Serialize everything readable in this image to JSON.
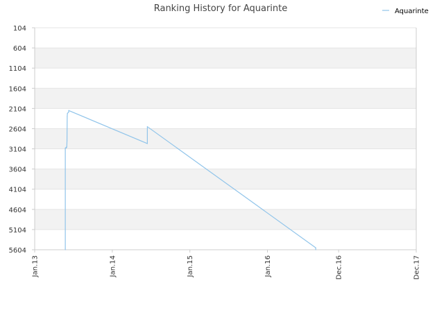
{
  "chart_data": {
    "type": "line",
    "title": "Ranking History for Aquarinte",
    "xlabel": "",
    "ylabel": "",
    "y_inverted": true,
    "ylim": [
      104,
      5604
    ],
    "y_ticks": [
      104,
      604,
      1104,
      1604,
      2104,
      2604,
      3104,
      3604,
      4104,
      4604,
      5104,
      5604
    ],
    "y_tick_labels": [
      "104",
      "604",
      "1104",
      "1604",
      "2104",
      "2604",
      "3104",
      "3604",
      "4104",
      "4604",
      "5104",
      "5604"
    ],
    "xlim": [
      "2013-01-01",
      "2017-12-01"
    ],
    "x_ticks": [
      {
        "label": "Jan.13",
        "date": "2013-01-01"
      },
      {
        "label": "Jan.14",
        "date": "2014-01-01"
      },
      {
        "label": "Jan.15",
        "date": "2015-01-01"
      },
      {
        "label": "Jan.16",
        "date": "2016-01-01"
      },
      {
        "label": "Dec.16",
        "date": "2016-12-01"
      },
      {
        "label": "Dec.17",
        "date": "2017-12-01"
      }
    ],
    "grid": "horizontal bands",
    "legend": {
      "position": "top-right"
    },
    "colors": {
      "series": "#90c4ea",
      "band": "#f2f2f2",
      "grid": "#e4e4e4",
      "axis": "#cccccc"
    },
    "series": [
      {
        "name": "Aquarinte",
        "points": [
          {
            "x": "2013-05-25",
            "y": 5604
          },
          {
            "x": "2013-05-25",
            "y": 3084
          },
          {
            "x": "2013-05-29",
            "y": 3084
          },
          {
            "x": "2013-05-29",
            "y": 3064
          },
          {
            "x": "2013-06-01",
            "y": 3064
          },
          {
            "x": "2013-06-02",
            "y": 2904
          },
          {
            "x": "2013-06-03",
            "y": 2304
          },
          {
            "x": "2013-06-04",
            "y": 2224
          },
          {
            "x": "2013-06-10",
            "y": 2194
          },
          {
            "x": "2013-06-10",
            "y": 2154
          },
          {
            "x": "2014-06-15",
            "y": 2974
          },
          {
            "x": "2014-06-15",
            "y": 2554
          },
          {
            "x": "2016-08-15",
            "y": 5554
          },
          {
            "x": "2016-08-15",
            "y": 5604
          }
        ]
      }
    ]
  }
}
